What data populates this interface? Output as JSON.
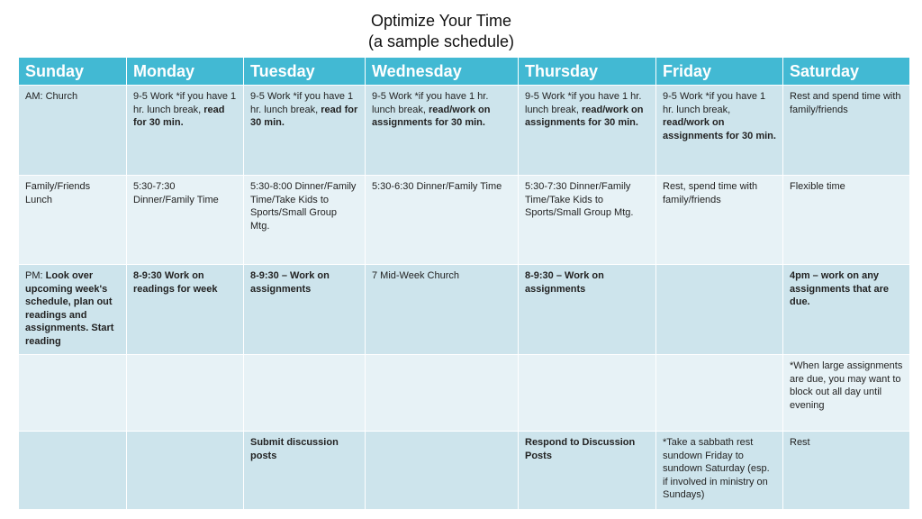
{
  "title": {
    "line1": "Optimize Your Time",
    "line2": "(a sample schedule)"
  },
  "colors": {
    "header": "#42b9d3",
    "row_dark": "#cde4ec",
    "row_light": "#e7f2f6"
  },
  "days": [
    "Sunday",
    "Monday",
    "Tuesday",
    "Wednesday",
    "Thursday",
    "Friday",
    "Saturday"
  ],
  "rows": [
    [
      [
        {
          "t": "AM: Church"
        }
      ],
      [
        {
          "t": "9-5 Work *if you have 1 hr. lunch break, "
        },
        {
          "t": "read for 30 min.",
          "b": true
        }
      ],
      [
        {
          "t": "9-5 Work *if you have 1 hr. lunch break, "
        },
        {
          "t": "read for 30 min.",
          "b": true
        }
      ],
      [
        {
          "t": "9-5 Work *if you have 1 hr. lunch break, "
        },
        {
          "t": "read/work on assignments for 30 min.",
          "b": true
        }
      ],
      [
        {
          "t": "9-5 Work *if you have 1 hr. lunch break, "
        },
        {
          "t": "read/work on assignments for 30 min.",
          "b": true
        }
      ],
      [
        {
          "t": "9-5 Work *if you have 1 hr. lunch break, "
        },
        {
          "t": "read/work on assignments for 30 min.",
          "b": true
        }
      ],
      [
        {
          "t": "Rest and spend time with family/friends"
        }
      ]
    ],
    [
      [
        {
          "t": "Family/Friends Lunch"
        }
      ],
      [
        {
          "t": "5:30-7:30 Dinner/Family Time"
        }
      ],
      [
        {
          "t": "5:30-8:00 Dinner/Family Time/Take Kids to Sports/Small Group Mtg."
        }
      ],
      [
        {
          "t": "5:30-6:30 Dinner/Family Time"
        }
      ],
      [
        {
          "t": "5:30-7:30 Dinner/Family Time/Take Kids to Sports/Small Group Mtg."
        }
      ],
      [
        {
          "t": "Rest, spend time with family/friends"
        }
      ],
      [
        {
          "t": "Flexible time"
        }
      ]
    ],
    [
      [
        {
          "t": "PM: "
        },
        {
          "t": "Look over upcoming week's schedule, plan out readings and assignments. Start reading",
          "b": true
        }
      ],
      [
        {
          "t": "8-9:30 Work on readings for week",
          "b": true
        }
      ],
      [
        {
          "t": "8-9:30 – Work on assignments",
          "b": true
        }
      ],
      [
        {
          "t": "7 Mid-Week Church"
        }
      ],
      [
        {
          "t": "8-9:30 – Work on assignments",
          "b": true
        }
      ],
      [],
      [
        {
          "t": "4pm – work on any assignments that are due.",
          "b": true
        }
      ]
    ],
    [
      [],
      [],
      [],
      [],
      [],
      [],
      [
        {
          "t": "*When large assignments are due, you may want to block out all day until evening"
        }
      ]
    ],
    [
      [],
      [],
      [
        {
          "t": "Submit discussion posts",
          "b": true
        }
      ],
      [],
      [
        {
          "t": "Respond to Discussion Posts",
          "b": true
        }
      ],
      [
        {
          "t": "*Take a sabbath rest sundown Friday to sundown Saturday (esp. if involved in ministry on Sundays)"
        }
      ],
      [
        {
          "t": "Rest"
        }
      ]
    ]
  ]
}
